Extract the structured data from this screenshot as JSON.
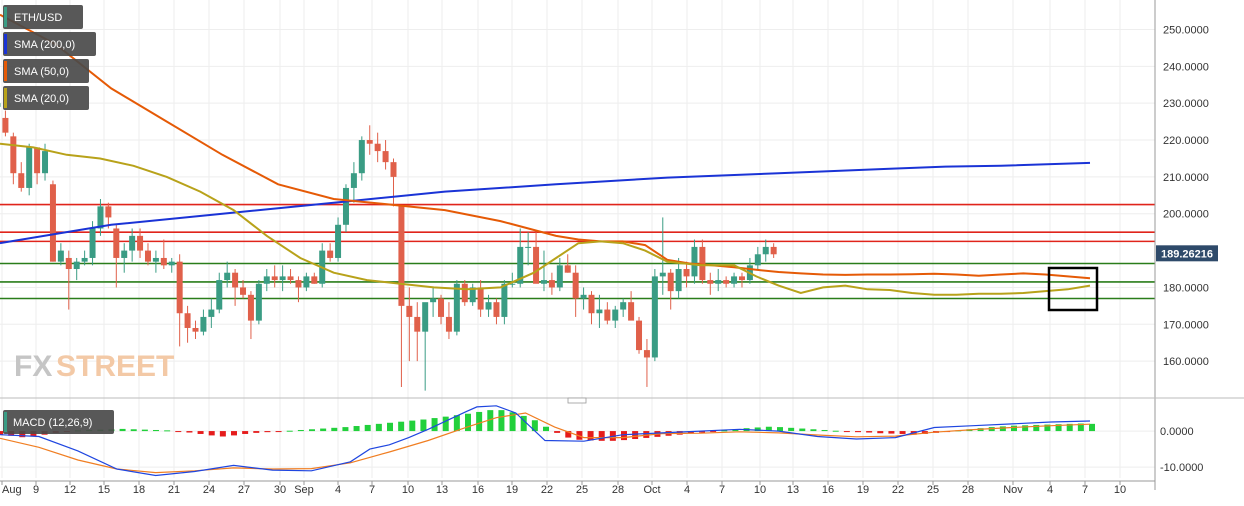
{
  "legend": [
    {
      "label": "ETH/USD",
      "color": "#3a9c84"
    },
    {
      "label": "SMA (200,0)",
      "color": "#1a33d6"
    },
    {
      "label": "SMA (50,0)",
      "color": "#e55a06"
    },
    {
      "label": "SMA (20,0)",
      "color": "#b8a21a"
    }
  ],
  "watermark": {
    "fx": "FX",
    "street": "STREET"
  },
  "price_label": "189.26216",
  "macd_label": "MACD (12,26,9)",
  "chart_data": [
    {
      "type": "candlestick",
      "title": "ETH/USD",
      "ylim": [
        150,
        258
      ],
      "y_ticks": [
        "250.0000",
        "240.0000",
        "230.0000",
        "220.0000",
        "210.0000",
        "200.0000",
        "180.0000",
        "170.0000",
        "160.0000"
      ],
      "x_ticks": [
        "Aug",
        "9",
        "12",
        "15",
        "18",
        "21",
        "24",
        "27",
        "30",
        "Sep",
        "4",
        "7",
        "10",
        "13",
        "16",
        "19",
        "22",
        "25",
        "28",
        "Oct",
        "4",
        "7",
        "10",
        "13",
        "16",
        "19",
        "22",
        "25",
        "28",
        "Nov",
        "4",
        "7",
        "10"
      ],
      "candles": [
        [
          229,
          232,
          226,
          230
        ],
        [
          226,
          228,
          221,
          222
        ],
        [
          221,
          222,
          208,
          211
        ],
        [
          211,
          214,
          206,
          207
        ],
        [
          207,
          219,
          205,
          218
        ],
        [
          218,
          218,
          208,
          211
        ],
        [
          211,
          219,
          209,
          217
        ],
        [
          208,
          209,
          187,
          187
        ],
        [
          187,
          192,
          186,
          190
        ],
        [
          188,
          190,
          174,
          185
        ],
        [
          185,
          188,
          182,
          187
        ],
        [
          187,
          190,
          186,
          188
        ],
        [
          188,
          198,
          186,
          196
        ],
        [
          196,
          204,
          194,
          202
        ],
        [
          202,
          203,
          196,
          199
        ],
        [
          196,
          197,
          180,
          188
        ],
        [
          188,
          192,
          184,
          190
        ],
        [
          190,
          196,
          187,
          194
        ],
        [
          194,
          196,
          188,
          190
        ],
        [
          190,
          192,
          186,
          187
        ],
        [
          187,
          190,
          184,
          188
        ],
        [
          188,
          193,
          185,
          186
        ],
        [
          186,
          188,
          184,
          187
        ],
        [
          187,
          189,
          164,
          173
        ],
        [
          173,
          175,
          165,
          169
        ],
        [
          169,
          171,
          166,
          168
        ],
        [
          168,
          174,
          167,
          172
        ],
        [
          172,
          177,
          169,
          174
        ],
        [
          174,
          184,
          173,
          182
        ],
        [
          182,
          187,
          180,
          184
        ],
        [
          184,
          185,
          175,
          180
        ],
        [
          180,
          182,
          177,
          178
        ],
        [
          178,
          179,
          166,
          171
        ],
        [
          171,
          182,
          170,
          181
        ],
        [
          181,
          185,
          179,
          183
        ],
        [
          183,
          186,
          180,
          182
        ],
        [
          182,
          186,
          179,
          183
        ],
        [
          183,
          185,
          181,
          182
        ],
        [
          182,
          183,
          176,
          180
        ],
        [
          180,
          184,
          179,
          183
        ],
        [
          183,
          184,
          181,
          181
        ],
        [
          181,
          192,
          180,
          190
        ],
        [
          190,
          192,
          187,
          188
        ],
        [
          188,
          199,
          187,
          197
        ],
        [
          197,
          208,
          195,
          207
        ],
        [
          207,
          214,
          203,
          211
        ],
        [
          211,
          221,
          209,
          220
        ],
        [
          220,
          224,
          216,
          219
        ],
        [
          219,
          222,
          214,
          217
        ],
        [
          217,
          220,
          212,
          214
        ],
        [
          214,
          215,
          202,
          210
        ],
        [
          202,
          202,
          153,
          175
        ],
        [
          175,
          180,
          160,
          172
        ],
        [
          172,
          176,
          160,
          168
        ],
        [
          168,
          175,
          152,
          176
        ],
        [
          176,
          180,
          172,
          177
        ],
        [
          177,
          178,
          170,
          172
        ],
        [
          172,
          176,
          166,
          168
        ],
        [
          168,
          182,
          167,
          181
        ],
        [
          181,
          182,
          175,
          176
        ],
        [
          176,
          181,
          175,
          180
        ],
        [
          180,
          182,
          172,
          174
        ],
        [
          174,
          178,
          172,
          176
        ],
        [
          176,
          177,
          170,
          172
        ],
        [
          172,
          182,
          170,
          181
        ],
        [
          181,
          184,
          180,
          181
        ],
        [
          181,
          196,
          180,
          191
        ],
        [
          191,
          195,
          186,
          191
        ],
        [
          191,
          195,
          182,
          181
        ],
        [
          181,
          190,
          179,
          182
        ],
        [
          182,
          184,
          178,
          180
        ],
        [
          180,
          188,
          179,
          186
        ],
        [
          186,
          189,
          184,
          184
        ],
        [
          184,
          186,
          172,
          177
        ],
        [
          177,
          180,
          174,
          178
        ],
        [
          178,
          179,
          170,
          173
        ],
        [
          173,
          178,
          169,
          174
        ],
        [
          174,
          176,
          170,
          171
        ],
        [
          171,
          175,
          169,
          174
        ],
        [
          174,
          177,
          172,
          176
        ],
        [
          176,
          179,
          172,
          171
        ],
        [
          171,
          172,
          162,
          163
        ],
        [
          163,
          166,
          153,
          161
        ],
        [
          161,
          185,
          160,
          183
        ],
        [
          183,
          199,
          178,
          184
        ],
        [
          184,
          185,
          174,
          179
        ],
        [
          179,
          188,
          177,
          185
        ],
        [
          185,
          187,
          180,
          183
        ],
        [
          183,
          193,
          181,
          191
        ],
        [
          191,
          193,
          181,
          182
        ],
        [
          182,
          184,
          178,
          181
        ],
        [
          181,
          185,
          179,
          182
        ],
        [
          182,
          183,
          180,
          181
        ],
        [
          181,
          184,
          180,
          183
        ],
        [
          183,
          184,
          180,
          182
        ],
        [
          182,
          188,
          181,
          186
        ],
        [
          186,
          191,
          185,
          189
        ],
        [
          189,
          193,
          187,
          191
        ],
        [
          191,
          192,
          188,
          189
        ]
      ],
      "sma_200": [
        [
          0,
          192
        ],
        [
          20,
          197
        ],
        [
          40,
          200
        ],
        [
          60,
          203
        ],
        [
          80,
          206
        ],
        [
          100,
          208
        ],
        [
          120,
          209.8
        ],
        [
          140,
          211
        ],
        [
          160,
          212.2
        ],
        [
          170,
          212.8
        ],
        [
          180,
          213
        ],
        [
          196,
          213.8
        ]
      ],
      "sma_50": [
        [
          0,
          254
        ],
        [
          10,
          246
        ],
        [
          20,
          234
        ],
        [
          30,
          225
        ],
        [
          40,
          216
        ],
        [
          50,
          208
        ],
        [
          60,
          204
        ],
        [
          70,
          202.5
        ],
        [
          80,
          201
        ],
        [
          90,
          198
        ],
        [
          100,
          194
        ],
        [
          104,
          193
        ],
        [
          108,
          192.5
        ],
        [
          112,
          192.5
        ],
        [
          116,
          191.5
        ],
        [
          120,
          187.5
        ],
        [
          124,
          186.5
        ],
        [
          128,
          186
        ],
        [
          132,
          185.5
        ],
        [
          136,
          184.8
        ],
        [
          140,
          184.2
        ],
        [
          144,
          183.8
        ],
        [
          148,
          183.5
        ],
        [
          152,
          183.4
        ],
        [
          156,
          183.5
        ],
        [
          160,
          183.5
        ],
        [
          164,
          183.6
        ],
        [
          168,
          183.7
        ],
        [
          172,
          183.5
        ],
        [
          176,
          183.2
        ],
        [
          180,
          183.5
        ],
        [
          184,
          183.8
        ],
        [
          188,
          183.5
        ],
        [
          192,
          183
        ],
        [
          196,
          182.5
        ]
      ],
      "sma_20": [
        [
          0,
          219
        ],
        [
          6,
          218
        ],
        [
          12,
          216
        ],
        [
          18,
          215
        ],
        [
          24,
          213
        ],
        [
          30,
          210
        ],
        [
          36,
          206
        ],
        [
          42,
          201
        ],
        [
          48,
          194
        ],
        [
          54,
          188
        ],
        [
          60,
          184
        ],
        [
          66,
          182
        ],
        [
          72,
          181
        ],
        [
          78,
          180
        ],
        [
          84,
          179.5
        ],
        [
          90,
          180
        ],
        [
          96,
          184
        ],
        [
          100,
          188
        ],
        [
          104,
          192
        ],
        [
          108,
          192.5
        ],
        [
          112,
          192
        ],
        [
          116,
          190
        ],
        [
          120,
          187
        ],
        [
          126,
          186
        ],
        [
          132,
          186
        ],
        [
          136,
          183
        ],
        [
          140,
          180.5
        ],
        [
          144,
          178.5
        ],
        [
          148,
          180
        ],
        [
          152,
          180.5
        ],
        [
          156,
          179.5
        ],
        [
          160,
          179.3
        ],
        [
          164,
          178.5
        ],
        [
          168,
          178
        ],
        [
          172,
          178
        ],
        [
          176,
          178.3
        ],
        [
          180,
          178.3
        ],
        [
          184,
          178.5
        ],
        [
          188,
          179
        ],
        [
          192,
          179.5
        ],
        [
          196,
          180.5
        ]
      ],
      "horizontal_lines": [
        {
          "y": 202.5,
          "color": "#e0241b"
        },
        {
          "y": 195,
          "color": "#e0241b"
        },
        {
          "y": 192.5,
          "color": "#e0241b"
        },
        {
          "y": 186.5,
          "color": "#2a7d1a"
        },
        {
          "y": 181.5,
          "color": "#2a7d1a"
        },
        {
          "y": 177,
          "color": "#2a7d1a"
        }
      ],
      "last_price": 189.26216
    },
    {
      "type": "bar",
      "title": "MACD (12,26,9)",
      "ylim": [
        -13,
        7.5
      ],
      "y_ticks": [
        "0.0000",
        "-10.0000"
      ],
      "histogram": [
        -1,
        -1.3,
        -1.7,
        -1.4,
        -1,
        -0.5,
        -0.2,
        0.2,
        0.3,
        0.4,
        0.5,
        0.6,
        0.5,
        0.4,
        0.3,
        0.2,
        -0.1,
        -0.4,
        -0.8,
        -1.2,
        -1.5,
        -1.2,
        -0.8,
        -0.5,
        -0.3,
        -0.1,
        0.1,
        0.3,
        0.5,
        0.7,
        0.9,
        1.1,
        1.4,
        1.7,
        2,
        2.3,
        2.6,
        2.9,
        3.2,
        3.6,
        4,
        4.4,
        4.8,
        5.3,
        5.8,
        5.8,
        5.2,
        4.2,
        3,
        1.2,
        -0.5,
        -1.8,
        -2.4,
        -2.6,
        -2.7,
        -2.7,
        -2.5,
        -2.2,
        -1.9,
        -1.6,
        -1.3,
        -1,
        -0.7,
        -0.4,
        -0.1,
        0.2,
        0.5,
        0.8,
        1,
        1.2,
        1.1,
        0.9,
        0.7,
        0.5,
        0.3,
        0.1,
        -0.1,
        -0.3,
        -0.4,
        -0.6,
        -0.7,
        -0.8,
        -1,
        -0.8,
        -0.5,
        -0.2,
        0.2,
        0.5,
        0.8,
        1.1,
        1.3,
        1.5,
        1.6,
        1.7,
        1.8,
        1.9,
        2,
        2.1,
        2
      ],
      "macd_line": [
        [
          0,
          -1
        ],
        [
          20,
          -1.5
        ],
        [
          40,
          -5.5
        ],
        [
          60,
          -10.5
        ],
        [
          80,
          -12.3
        ],
        [
          100,
          -11.2
        ],
        [
          120,
          -9.5
        ],
        [
          140,
          -10.8
        ],
        [
          160,
          -11
        ],
        [
          180,
          -8.5
        ],
        [
          190,
          -5
        ],
        [
          200,
          -3.8
        ],
        [
          210,
          -1.8
        ],
        [
          220,
          0.5
        ],
        [
          230,
          3
        ],
        [
          240,
          5.5
        ],
        [
          245,
          6.7
        ],
        [
          255,
          7
        ],
        [
          265,
          5
        ],
        [
          280,
          -2.6
        ],
        [
          300,
          -2.8
        ],
        [
          320,
          -1
        ],
        [
          340,
          -0.5
        ],
        [
          360,
          0
        ],
        [
          380,
          0.5
        ],
        [
          400,
          0
        ],
        [
          420,
          -1.5
        ],
        [
          440,
          -2.2
        ],
        [
          460,
          -1.8
        ],
        [
          480,
          1
        ],
        [
          500,
          1.5
        ],
        [
          520,
          2
        ],
        [
          540,
          2.5
        ],
        [
          560,
          2.8
        ]
      ],
      "signal_line": [
        [
          0,
          -2
        ],
        [
          20,
          -4.5
        ],
        [
          40,
          -8
        ],
        [
          60,
          -10.5
        ],
        [
          80,
          -11.5
        ],
        [
          100,
          -11
        ],
        [
          120,
          -10.2
        ],
        [
          140,
          -10.5
        ],
        [
          160,
          -10.4
        ],
        [
          180,
          -8.8
        ],
        [
          200,
          -5.8
        ],
        [
          220,
          -2.6
        ],
        [
          240,
          1.1
        ],
        [
          255,
          3.7
        ],
        [
          270,
          5
        ],
        [
          285,
          1.1
        ],
        [
          300,
          -1.8
        ],
        [
          320,
          -1.8
        ],
        [
          340,
          -0.7
        ],
        [
          360,
          -0.6
        ],
        [
          380,
          -0.2
        ],
        [
          400,
          -0.5
        ],
        [
          420,
          -1.1
        ],
        [
          440,
          -1.6
        ],
        [
          460,
          -1.4
        ],
        [
          480,
          -0.3
        ],
        [
          500,
          0.4
        ],
        [
          520,
          1
        ],
        [
          540,
          1.5
        ],
        [
          560,
          1.9
        ]
      ]
    }
  ]
}
